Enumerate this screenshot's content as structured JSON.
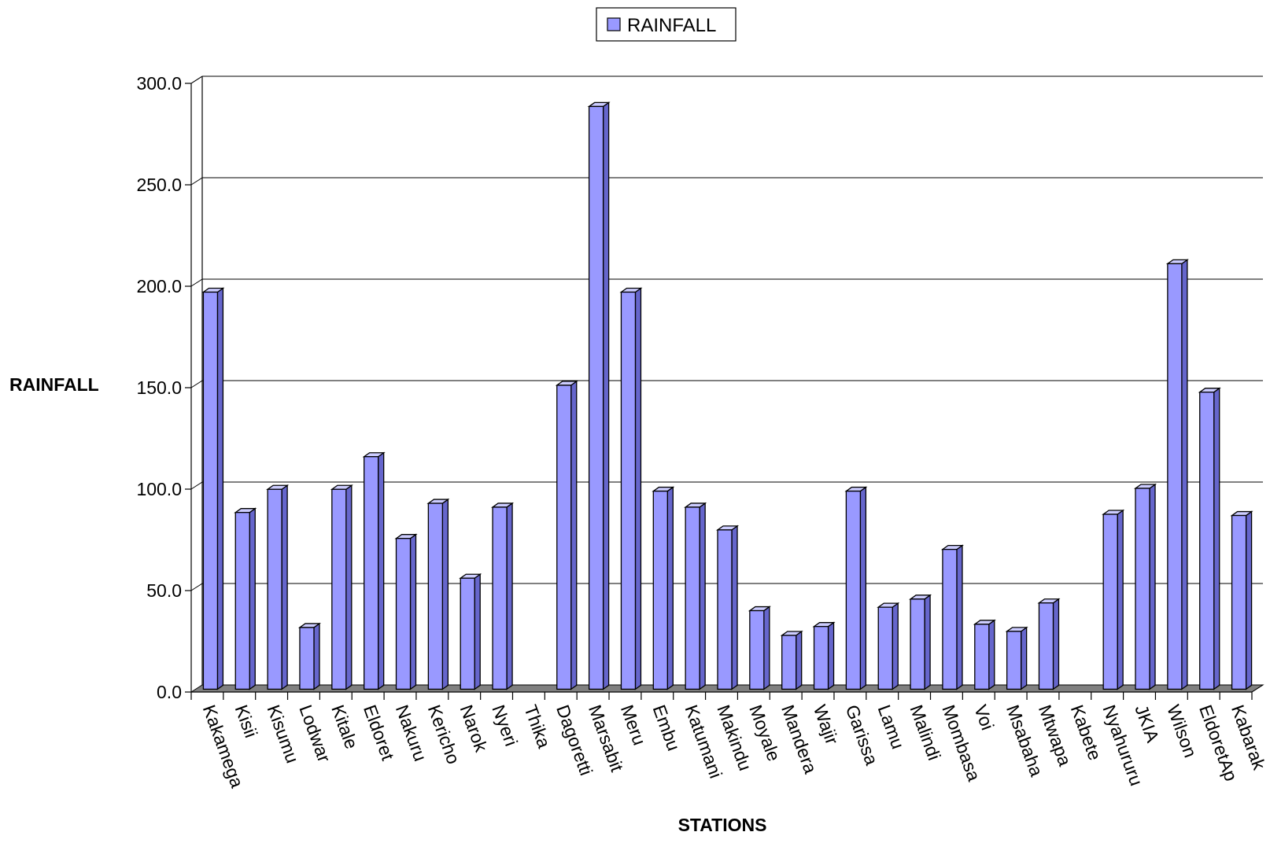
{
  "chart_data": {
    "type": "bar",
    "title": "",
    "legend": {
      "position": "top-center",
      "entries": [
        "RAINFALL"
      ]
    },
    "xlabel": "STATIONS",
    "ylabel": "RAINFALL",
    "ylim": [
      0,
      300
    ],
    "yticks": [
      "0.0",
      "50.0",
      "100.0",
      "150.0",
      "200.0",
      "250.0",
      "300.0"
    ],
    "grid": true,
    "categories": [
      "Kakamega",
      "Kisii",
      "Kisumu",
      "Lodwar",
      "Kitale",
      "Eldoret",
      "Nakuru",
      "Kericho",
      "Narok",
      "Nyeri",
      "Thika",
      "Dagoretti",
      "Marsabit",
      "Meru",
      "Embu",
      "Katumani",
      "Makindu",
      "Moyale",
      "Mandera",
      "Wajir",
      "Garissa",
      "Lamu",
      "Malindi",
      "Mombasa",
      "Voi",
      "Msabaha",
      "Mtwapa",
      "Kabete",
      "Nyahururu",
      "JKIA",
      "Wilson",
      "EldoretAp",
      "Kabarak"
    ],
    "series": [
      {
        "name": "RAINFALL",
        "values": [
          197.1,
          88.5,
          99.9,
          31.8,
          99.9,
          116.0,
          75.7,
          93.0,
          56.1,
          91.1,
          0,
          151.2,
          288.6,
          197.1,
          99.0,
          91.1,
          79.9,
          40.1,
          27.9,
          32.3,
          99.0,
          41.8,
          45.8,
          70.3,
          33.4,
          29.9,
          43.9,
          0,
          87.6,
          100.4,
          211.1,
          147.8,
          87.0
        ]
      }
    ],
    "colors": {
      "bar_front": "#9999ff",
      "bar_top": "#ccccff",
      "bar_side": "#6666cc",
      "floor": "#808080",
      "grid": "#000000"
    }
  }
}
